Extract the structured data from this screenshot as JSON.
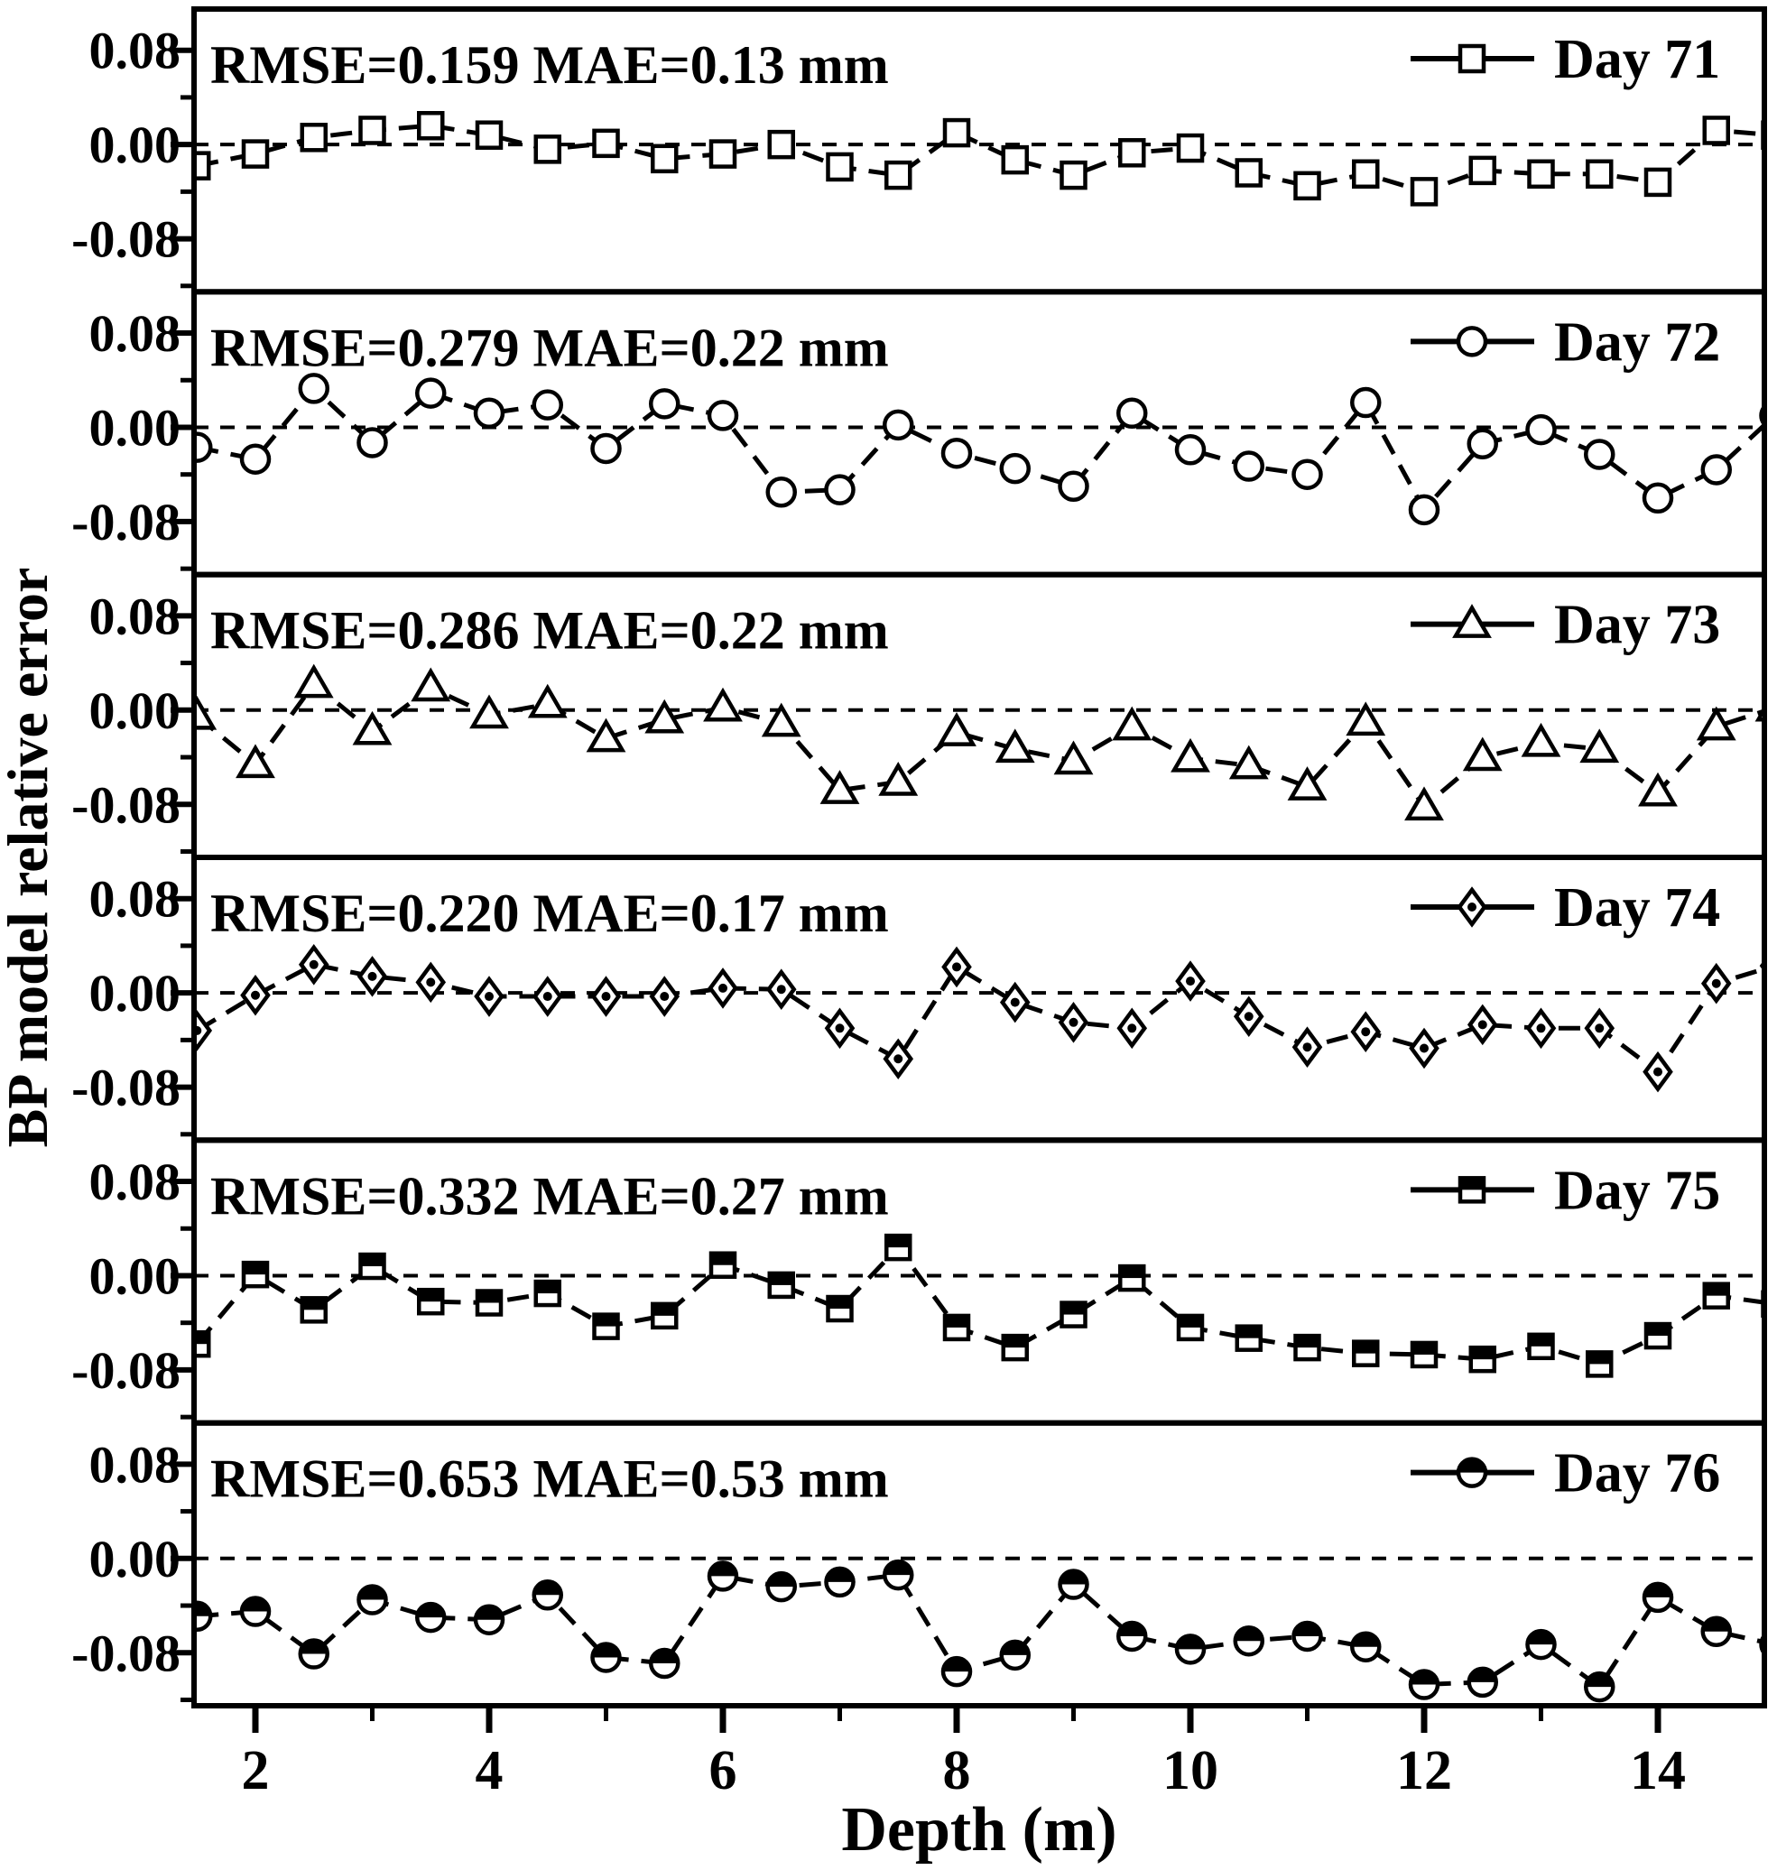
{
  "figure": {
    "background": "#ffffff",
    "foreground": "#000000"
  },
  "chart_data": {
    "type": "line",
    "layout": "6 vertically stacked panels sharing one x axis",
    "title": "",
    "xlabel": "Depth (m)",
    "ylabel": "BP model relative error",
    "grid": "off",
    "zero_reference_line": "dashed horizontal line at y=0 in every panel",
    "xlim": [
      1.47,
      14.91
    ],
    "ylim_per_panel": [
      -0.125,
      0.115
    ],
    "x_ticks": {
      "major_values": [
        2,
        4,
        6,
        8,
        10,
        12,
        14
      ],
      "major_labels": [
        "2",
        "4",
        "6",
        "8",
        "10",
        "12",
        "14"
      ],
      "minor_values": [
        3,
        5,
        7,
        9,
        11,
        13
      ]
    },
    "y_ticks": {
      "major_values": [
        0.08,
        0.0,
        -0.08
      ],
      "major_labels": [
        "0.08",
        "0.00",
        "-0.08"
      ],
      "minor_values": [
        0.04,
        -0.04,
        -0.12
      ]
    },
    "x": [
      1.5,
      2.0,
      2.5,
      3.0,
      3.5,
      4.0,
      4.5,
      5.0,
      5.5,
      6.0,
      6.5,
      7.0,
      7.5,
      8.0,
      8.5,
      9.0,
      9.5,
      10.0,
      10.5,
      11.0,
      11.5,
      12.0,
      12.5,
      13.0,
      13.5,
      14.0,
      14.5,
      15.0
    ],
    "panels": [
      {
        "day": "Day 71",
        "rmse": 0.159,
        "mae": 0.13,
        "rmse_label": "RMSE=0.159",
        "mae_label": "MAE=0.13 mm",
        "annotation": "RMSE=0.159   MAE=0.13 mm",
        "marker": "open-square",
        "line_style": "dashed",
        "values": [
          -0.018,
          -0.008,
          0.006,
          0.012,
          0.016,
          0.008,
          -0.004,
          0.001,
          -0.012,
          -0.008,
          0.0,
          -0.019,
          -0.026,
          0.01,
          -0.013,
          -0.026,
          -0.007,
          -0.003,
          -0.024,
          -0.035,
          -0.025,
          -0.04,
          -0.022,
          -0.025,
          -0.025,
          -0.032,
          0.012,
          0.008
        ]
      },
      {
        "day": "Day 72",
        "rmse": 0.279,
        "mae": 0.22,
        "rmse_label": "RMSE=0.279",
        "mae_label": "MAE=0.22 mm",
        "annotation": "RMSE=0.279   MAE=0.22 mm",
        "marker": "open-circle",
        "line_style": "dashed",
        "values": [
          -0.017,
          -0.027,
          0.033,
          -0.013,
          0.029,
          0.012,
          0.019,
          -0.018,
          0.02,
          0.01,
          -0.055,
          -0.053,
          0.002,
          -0.022,
          -0.035,
          -0.05,
          0.012,
          -0.019,
          -0.033,
          -0.04,
          0.021,
          -0.07,
          -0.014,
          -0.002,
          -0.023,
          -0.06,
          -0.036,
          0.01
        ]
      },
      {
        "day": "Day 73",
        "rmse": 0.286,
        "mae": 0.22,
        "rmse_label": "RMSE=0.286",
        "mae_label": "MAE=0.22 mm",
        "annotation": "RMSE=0.286   MAE=0.22 mm",
        "marker": "open-triangle",
        "line_style": "dashed",
        "values": [
          -0.005,
          -0.046,
          0.022,
          -0.018,
          0.019,
          -0.004,
          0.005,
          -0.024,
          -0.008,
          0.002,
          -0.011,
          -0.068,
          -0.061,
          -0.019,
          -0.033,
          -0.043,
          -0.014,
          -0.041,
          -0.047,
          -0.065,
          -0.01,
          -0.082,
          -0.04,
          -0.028,
          -0.033,
          -0.07,
          -0.014,
          0.002
        ]
      },
      {
        "day": "Day 74",
        "rmse": 0.22,
        "mae": 0.17,
        "rmse_label": "RMSE=0.220",
        "mae_label": "MAE=0.17 mm",
        "annotation": "RMSE=0.220   MAE=0.17 mm",
        "marker": "diamond-dot",
        "line_style": "dashed",
        "values": [
          -0.032,
          -0.002,
          0.024,
          0.014,
          0.009,
          -0.003,
          -0.003,
          -0.003,
          -0.003,
          0.004,
          0.003,
          -0.03,
          -0.056,
          0.022,
          -0.008,
          -0.025,
          -0.03,
          0.01,
          -0.02,
          -0.046,
          -0.033,
          -0.047,
          -0.027,
          -0.03,
          -0.03,
          -0.067,
          0.008,
          0.023
        ]
      },
      {
        "day": "Day 75",
        "rmse": 0.332,
        "mae": 0.27,
        "rmse_label": "RMSE=0.332",
        "mae_label": "MAE=0.27 mm",
        "annotation": "RMSE=0.332   MAE=0.27 mm",
        "marker": "half-filled-square",
        "line_style": "dashed",
        "values": [
          -0.058,
          0.001,
          -0.029,
          0.008,
          -0.022,
          -0.023,
          -0.015,
          -0.043,
          -0.034,
          0.009,
          -0.008,
          -0.028,
          0.024,
          -0.044,
          -0.061,
          -0.033,
          -0.002,
          -0.044,
          -0.053,
          -0.061,
          -0.066,
          -0.067,
          -0.071,
          -0.06,
          -0.075,
          -0.051,
          -0.017,
          -0.024
        ]
      },
      {
        "day": "Day 76",
        "rmse": 0.653,
        "mae": 0.53,
        "rmse_label": "RMSE=0.653",
        "mae_label": "MAE=0.53 mm",
        "annotation": "RMSE=0.653   MAE=0.53 mm",
        "marker": "half-filled-circle",
        "line_style": "dashed",
        "values": [
          -0.049,
          -0.045,
          -0.081,
          -0.035,
          -0.05,
          -0.052,
          -0.031,
          -0.084,
          -0.089,
          -0.015,
          -0.024,
          -0.02,
          -0.014,
          -0.096,
          -0.082,
          -0.022,
          -0.066,
          -0.077,
          -0.07,
          -0.066,
          -0.075,
          -0.107,
          -0.105,
          -0.073,
          -0.109,
          -0.033,
          -0.062,
          -0.073
        ]
      }
    ]
  }
}
